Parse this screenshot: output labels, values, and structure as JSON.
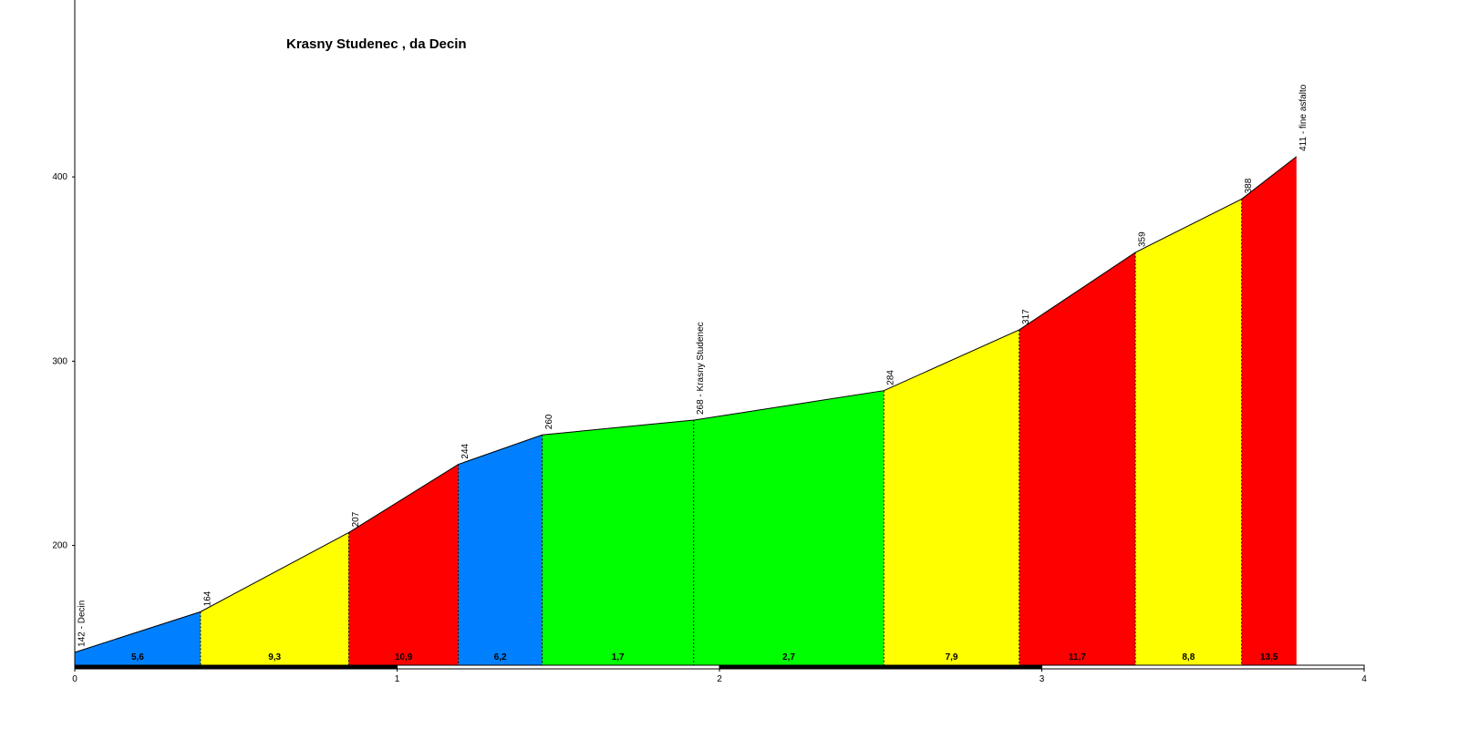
{
  "chart_data": {
    "type": "elevation-profile",
    "title": "Krasny Studenec , da Decin",
    "x": [
      0,
      0.39,
      0.85,
      1.19,
      1.45,
      1.92,
      2.51,
      2.93,
      3.29,
      3.62,
      3.79
    ],
    "values": [
      142,
      164,
      207,
      244,
      260,
      268,
      284,
      317,
      359,
      388,
      411
    ],
    "value_labels": [
      "142 - Decin",
      "164",
      "207",
      "244",
      "260",
      "268 - Krasny Studenec",
      "284",
      "317",
      "359",
      "388",
      "411 - fine asfalto"
    ],
    "segments": {
      "values": [
        5.6,
        9.3,
        10.9,
        6.2,
        1.7,
        2.7,
        7.9,
        11.7,
        8.8,
        13.5
      ],
      "value_labels": [
        "5,6",
        "9,3",
        "10,9",
        "6,2",
        "1,7",
        "2,7",
        "7,9",
        "11,7",
        "8,8",
        "13,5"
      ],
      "colors": [
        "#0080ff",
        "#ffff00",
        "#ff0000",
        "#0080ff",
        "#00ff00",
        "#00ff00",
        "#ffff00",
        "#ff0000",
        "#ffff00",
        "#ff0000"
      ]
    },
    "xlim": [
      0,
      4
    ],
    "xticks": [
      0,
      1,
      2,
      3,
      4
    ],
    "ylim": [
      135,
      496
    ],
    "yticks": [
      200,
      300,
      400
    ],
    "line_color": "#000000"
  }
}
